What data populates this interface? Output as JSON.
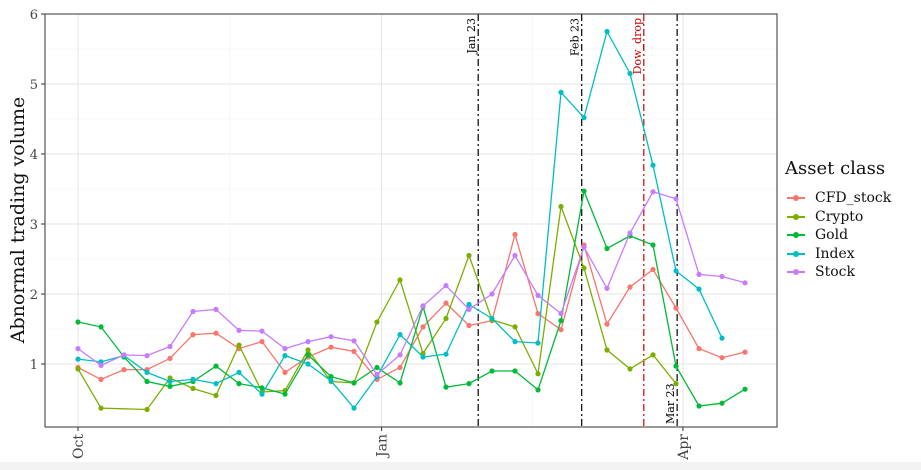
{
  "chart_data": {
    "type": "line",
    "ylabel": "Abnormal trading volume",
    "xlabel": "",
    "x_tick_labels": [
      "Oct",
      "Jan",
      "Apr"
    ],
    "y_ticks": [
      1,
      2,
      3,
      4,
      5,
      6
    ],
    "ylim": [
      0.3,
      6.0
    ],
    "grid": true,
    "legend_title": "Asset class",
    "legend_placement": "right",
    "vlines": [
      {
        "label": "Jan 23",
        "index": 17.4,
        "color": "#000000",
        "label_position": "top"
      },
      {
        "label": "Feb 23",
        "index": 21.9,
        "color": "#000000",
        "label_position": "top"
      },
      {
        "label": "Dow_drop",
        "index": 24.6,
        "color": "#cc0000",
        "label_position": "top"
      },
      {
        "label": "Mar 23",
        "index": 26.05,
        "color": "#000000",
        "label_position": "bottom"
      }
    ],
    "x": [
      0,
      1,
      2,
      3,
      4,
      5,
      6,
      7,
      8,
      9,
      10,
      11,
      12,
      13,
      14,
      15,
      16,
      17,
      18,
      19,
      20,
      21,
      22,
      23,
      24,
      25,
      26,
      27,
      28,
      29,
      30
    ],
    "series": [
      {
        "name": "CFD_stock",
        "color": "#f8766d",
        "values": [
          0.95,
          0.78,
          0.92,
          0.92,
          1.08,
          1.42,
          1.44,
          1.22,
          1.32,
          0.88,
          1.1,
          1.24,
          1.18,
          0.78,
          0.95,
          1.53,
          1.87,
          1.55,
          1.62,
          2.85,
          1.72,
          1.49,
          2.7,
          1.57,
          2.1,
          2.35,
          1.8,
          1.22,
          1.09,
          1.17,
          null
        ]
      },
      {
        "name": "Crypto",
        "color": "#7cae00",
        "values": [
          0.93,
          0.37,
          null,
          0.35,
          0.8,
          0.65,
          0.55,
          1.27,
          0.6,
          0.62,
          1.2,
          0.75,
          0.73,
          1.6,
          2.2,
          1.15,
          1.65,
          2.55,
          1.63,
          1.53,
          0.86,
          3.25,
          2.37,
          1.2,
          0.93,
          1.13,
          0.72,
          null,
          null,
          null,
          null
        ]
      },
      {
        "name": "Gold",
        "color": "#00ba38",
        "values": [
          1.6,
          1.53,
          1.1,
          0.75,
          0.68,
          0.75,
          0.97,
          0.72,
          0.66,
          0.57,
          1.13,
          0.82,
          0.73,
          0.95,
          0.73,
          1.82,
          0.67,
          0.72,
          0.9,
          0.9,
          0.63,
          1.62,
          3.47,
          2.65,
          2.83,
          2.7,
          0.97,
          0.4,
          0.44,
          0.64,
          null
        ]
      },
      {
        "name": "Index",
        "color": "#00bfc4",
        "values": [
          1.07,
          1.03,
          1.12,
          0.88,
          0.75,
          0.78,
          0.72,
          0.88,
          0.57,
          1.12,
          1.0,
          0.76,
          0.37,
          0.82,
          1.42,
          1.1,
          1.14,
          1.85,
          1.65,
          1.32,
          1.3,
          4.88,
          4.52,
          5.75,
          5.15,
          3.84,
          2.33,
          2.07,
          1.37,
          null,
          null
        ]
      },
      {
        "name": "Stock",
        "color": "#c77cff",
        "values": [
          1.22,
          0.98,
          1.13,
          1.12,
          1.25,
          1.75,
          1.78,
          1.48,
          1.47,
          1.22,
          1.32,
          1.39,
          1.33,
          0.85,
          1.13,
          1.83,
          2.12,
          1.78,
          2.0,
          2.55,
          1.98,
          1.72,
          2.67,
          2.08,
          2.87,
          3.46,
          3.36,
          2.28,
          2.25,
          2.16,
          null
        ]
      }
    ]
  }
}
